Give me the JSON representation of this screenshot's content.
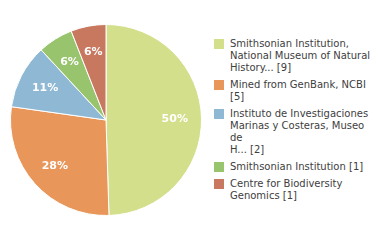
{
  "chart_data": {
    "type": "pie",
    "categories": [
      "Smithsonian Institution,\nNational Museum of Natural\nHistory... [9]",
      "Mined from GenBank, NCBI [5]",
      "Instituto de Investigaciones\nMarinas y Costeras, Museo de\nH... [2]",
      "Smithsonian Institution [1]",
      "Centre for Biodiversity\nGenomics [1]"
    ],
    "values": [
      50,
      28,
      11,
      6,
      6
    ],
    "value_labels": [
      "50%",
      "28%",
      "11%",
      "6%",
      "6%"
    ],
    "colors": [
      "#d4df8c",
      "#e8965a",
      "#8fb8d4",
      "#99c46e",
      "#c97860"
    ],
    "data_labels": true,
    "legend": "right"
  }
}
